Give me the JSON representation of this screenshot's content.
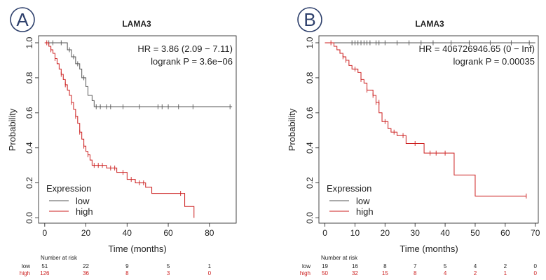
{
  "colors": {
    "low": "#555555",
    "high": "#cc1f1f",
    "badge": "#2d3f6b"
  },
  "chart_data": [
    {
      "type": "line",
      "panel_label": "A",
      "title": "LAMA3",
      "xlabel": "Time (months)",
      "ylabel": "Probability",
      "xlim": [
        -3,
        93
      ],
      "ylim": [
        -0.03,
        1.04
      ],
      "xticks": [
        "0",
        "20",
        "40",
        "60",
        "80"
      ],
      "xtick_values": [
        0,
        20,
        40,
        60,
        80
      ],
      "yticks": [
        "0.0",
        "0.2",
        "0.4",
        "0.6",
        "0.8",
        "1.0"
      ],
      "ytick_values": [
        0,
        0.2,
        0.4,
        0.6,
        0.8,
        1.0
      ],
      "grid": false,
      "stats": {
        "hr": "HR = 3.86 (2.09 − 7.11)",
        "logrank": "logrank P = 3.6e−06"
      },
      "legend": {
        "title": "Expression",
        "position": "bottom-left",
        "items": [
          "low",
          "high"
        ]
      },
      "series": [
        {
          "name": "low",
          "steps": [
            [
              0,
              1.0
            ],
            [
              10,
              1.0
            ],
            [
              11,
              0.96
            ],
            [
              13,
              0.92
            ],
            [
              15,
              0.88
            ],
            [
              17,
              0.85
            ],
            [
              18,
              0.8
            ],
            [
              20,
              0.75
            ],
            [
              21,
              0.7
            ],
            [
              23,
              0.67
            ],
            [
              24,
              0.635
            ],
            [
              91,
              0.635
            ]
          ],
          "censor": [
            [
              2,
              1.0
            ],
            [
              4,
              1.0
            ],
            [
              8,
              1.0
            ],
            [
              12,
              0.96
            ],
            [
              14,
              0.92
            ],
            [
              16,
              0.88
            ],
            [
              19,
              0.8
            ],
            [
              25,
              0.635
            ],
            [
              27,
              0.635
            ],
            [
              30,
              0.635
            ],
            [
              32,
              0.635
            ],
            [
              38,
              0.635
            ],
            [
              46,
              0.635
            ],
            [
              55,
              0.635
            ],
            [
              57,
              0.635
            ],
            [
              60,
              0.635
            ],
            [
              65,
              0.635
            ],
            [
              72,
              0.635
            ],
            [
              90,
              0.635
            ]
          ]
        },
        {
          "name": "high",
          "steps": [
            [
              0,
              1.0
            ],
            [
              2,
              0.98
            ],
            [
              3,
              0.96
            ],
            [
              4,
              0.94
            ],
            [
              5,
              0.91
            ],
            [
              6,
              0.88
            ],
            [
              7,
              0.85
            ],
            [
              8,
              0.82
            ],
            [
              9,
              0.79
            ],
            [
              10,
              0.76
            ],
            [
              11,
              0.73
            ],
            [
              12,
              0.7
            ],
            [
              13,
              0.66
            ],
            [
              14,
              0.62
            ],
            [
              15,
              0.58
            ],
            [
              16,
              0.54
            ],
            [
              17,
              0.49
            ],
            [
              18,
              0.45
            ],
            [
              19,
              0.41
            ],
            [
              20,
              0.38
            ],
            [
              21,
              0.36
            ],
            [
              22,
              0.33
            ],
            [
              23,
              0.3
            ],
            [
              30,
              0.285
            ],
            [
              35,
              0.26
            ],
            [
              40,
              0.22
            ],
            [
              44,
              0.2
            ],
            [
              49,
              0.175
            ],
            [
              52,
              0.14
            ],
            [
              67,
              0.14
            ],
            [
              68,
              0.065
            ],
            [
              72,
              0.065
            ],
            [
              72.5,
              0.0
            ]
          ],
          "censor": [
            [
              1,
              1.0
            ],
            [
              3,
              0.96
            ],
            [
              5,
              0.91
            ],
            [
              8,
              0.82
            ],
            [
              10,
              0.76
            ],
            [
              13,
              0.66
            ],
            [
              15,
              0.58
            ],
            [
              17,
              0.49
            ],
            [
              19,
              0.41
            ],
            [
              21,
              0.36
            ],
            [
              24,
              0.3
            ],
            [
              26,
              0.3
            ],
            [
              28,
              0.3
            ],
            [
              32,
              0.285
            ],
            [
              34,
              0.285
            ],
            [
              38,
              0.26
            ],
            [
              42,
              0.22
            ],
            [
              46,
              0.2
            ],
            [
              48,
              0.2
            ],
            [
              66,
              0.14
            ]
          ]
        }
      ],
      "risk_table": {
        "title": "Number at risk",
        "times": [
          "0",
          "20",
          "40",
          "60",
          "80"
        ],
        "rows": [
          {
            "label": "low",
            "values": [
              "51",
              "22",
              "9",
              "5",
              "1"
            ]
          },
          {
            "label": "high",
            "values": [
              "126",
              "36",
              "8",
              "3",
              "0"
            ]
          }
        ]
      }
    },
    {
      "type": "line",
      "panel_label": "B",
      "title": "LAMA3",
      "xlabel": "Time (months)",
      "ylabel": "Probability",
      "xlim": [
        -2,
        71
      ],
      "ylim": [
        -0.03,
        1.04
      ],
      "xticks": [
        "0",
        "10",
        "20",
        "30",
        "40",
        "50",
        "60",
        "70"
      ],
      "xtick_values": [
        0,
        10,
        20,
        30,
        40,
        50,
        60,
        70
      ],
      "yticks": [
        "0.0",
        "0.2",
        "0.4",
        "0.6",
        "0.8",
        "1.0"
      ],
      "ytick_values": [
        0,
        0.2,
        0.4,
        0.6,
        0.8,
        1.0
      ],
      "grid": false,
      "stats": {
        "hr": "HR = 406726946.65 (0 − Inf)",
        "logrank": "logrank P = 0.00035"
      },
      "legend": {
        "title": "Expression",
        "position": "bottom-left",
        "items": [
          "low",
          "high"
        ]
      },
      "series": [
        {
          "name": "low",
          "steps": [
            [
              0,
              1.0
            ],
            [
              70,
              1.0
            ]
          ],
          "censor": [
            [
              9,
              1.0
            ],
            [
              10,
              1.0
            ],
            [
              11,
              1.0
            ],
            [
              12,
              1.0
            ],
            [
              13,
              1.0
            ],
            [
              14,
              1.0
            ],
            [
              15,
              1.0
            ],
            [
              17,
              1.0
            ],
            [
              18,
              1.0
            ],
            [
              20,
              1.0
            ],
            [
              24,
              1.0
            ],
            [
              28,
              1.0
            ],
            [
              32,
              1.0
            ],
            [
              36,
              1.0
            ],
            [
              42,
              1.0
            ],
            [
              48,
              1.0
            ],
            [
              55,
              1.0
            ],
            [
              62,
              1.0
            ],
            [
              68,
              1.0
            ]
          ]
        },
        {
          "name": "high",
          "steps": [
            [
              0,
              1.0
            ],
            [
              3,
              0.98
            ],
            [
              4,
              0.96
            ],
            [
              5,
              0.94
            ],
            [
              6,
              0.92
            ],
            [
              7,
              0.9
            ],
            [
              8,
              0.87
            ],
            [
              9,
              0.85
            ],
            [
              11,
              0.83
            ],
            [
              12,
              0.79
            ],
            [
              13,
              0.77
            ],
            [
              14,
              0.73
            ],
            [
              16,
              0.7
            ],
            [
              17,
              0.66
            ],
            [
              18,
              0.6
            ],
            [
              19,
              0.55
            ],
            [
              21,
              0.51
            ],
            [
              22,
              0.49
            ],
            [
              24,
              0.47
            ],
            [
              27,
              0.425
            ],
            [
              33,
              0.37
            ],
            [
              43,
              0.245
            ],
            [
              50,
              0.125
            ],
            [
              67,
              0.125
            ]
          ],
          "censor": [
            [
              2,
              1.0
            ],
            [
              6,
              0.92
            ],
            [
              7,
              0.9
            ],
            [
              10,
              0.85
            ],
            [
              12,
              0.79
            ],
            [
              14,
              0.73
            ],
            [
              16,
              0.7
            ],
            [
              17,
              0.66
            ],
            [
              18,
              0.66
            ],
            [
              20,
              0.55
            ],
            [
              23,
              0.49
            ],
            [
              26,
              0.47
            ],
            [
              30,
              0.425
            ],
            [
              35,
              0.37
            ],
            [
              37,
              0.37
            ],
            [
              40,
              0.37
            ],
            [
              67,
              0.125
            ]
          ]
        }
      ],
      "risk_table": {
        "title": "Number at risk",
        "times": [
          "0",
          "10",
          "20",
          "30",
          "40",
          "50",
          "60",
          "70"
        ],
        "rows": [
          {
            "label": "low",
            "values": [
              "19",
              "16",
              "8",
              "7",
              "5",
              "4",
              "2",
              "0"
            ]
          },
          {
            "label": "high",
            "values": [
              "50",
              "32",
              "15",
              "8",
              "4",
              "2",
              "1",
              "0"
            ]
          }
        ]
      }
    }
  ]
}
